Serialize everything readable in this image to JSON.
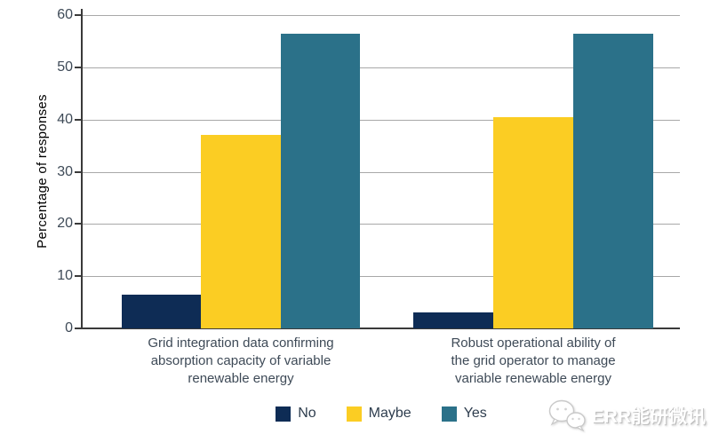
{
  "chart_data": {
    "type": "bar",
    "title": "",
    "ylabel": "Percentage of responses",
    "xlabel": "",
    "ylim": [
      0,
      60
    ],
    "yticks": [
      0,
      10,
      20,
      30,
      40,
      50,
      60
    ],
    "grid": true,
    "legend_position": "bottom",
    "categories": [
      "Grid integration data confirming\nabsorption capacity of variable\nrenewable energy",
      "Robust operational ability of\nthe grid operator to manage\nvariable renewable energy"
    ],
    "series": [
      {
        "name": "No",
        "color": "#0e2c55",
        "values": [
          6.5,
          3
        ]
      },
      {
        "name": "Maybe",
        "color": "#fbcd23",
        "values": [
          37,
          40.5
        ]
      },
      {
        "name": "Yes",
        "color": "#2b7189",
        "values": [
          56.5,
          56.5
        ]
      }
    ]
  },
  "style_colors": {
    "grid": "#a8a8a8",
    "axis": "#3a3a3a",
    "tick_text": "#3e4a57",
    "category_text": "#3e4a57",
    "legend_text": "#2e3d4e"
  },
  "watermark": {
    "text": "ERR能研微讯",
    "icon": "wechat-icon"
  }
}
